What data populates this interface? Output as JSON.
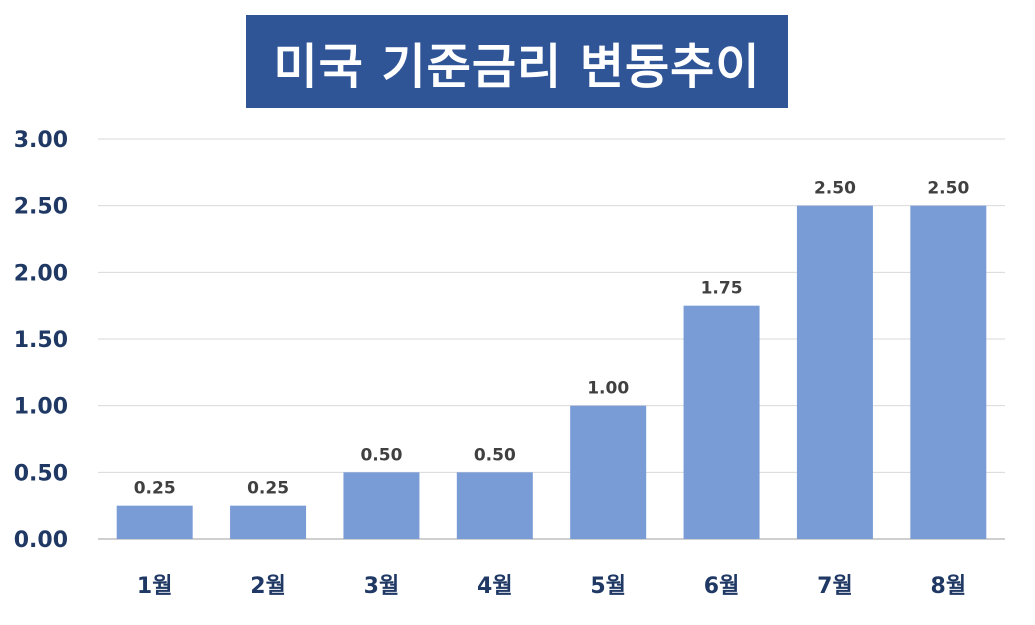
{
  "chart_data": {
    "type": "bar",
    "title": "미국 기준금리 변동추이",
    "categories": [
      "1월",
      "2월",
      "3월",
      "4월",
      "5월",
      "6월",
      "7월",
      "8월"
    ],
    "values": [
      0.25,
      0.25,
      0.5,
      0.5,
      1.0,
      1.75,
      2.5,
      2.5
    ],
    "data_labels": [
      "0.25",
      "0.25",
      "0.50",
      "0.50",
      "1.00",
      "1.75",
      "2.50",
      "2.50"
    ],
    "ytick_labels": [
      "0.00",
      "0.50",
      "1.00",
      "1.50",
      "2.00",
      "2.50",
      "3.00"
    ],
    "ylim": [
      0,
      3.0
    ],
    "xlabel": "",
    "ylabel": "",
    "grid": true,
    "legend": "none",
    "colors": {
      "bar": "#7a9cd6",
      "title_bg": "#2f5597",
      "title_text": "#ffffff",
      "axis_text": "#1f3864",
      "data_label": "#404040",
      "grid": "#d9d9d9"
    }
  }
}
